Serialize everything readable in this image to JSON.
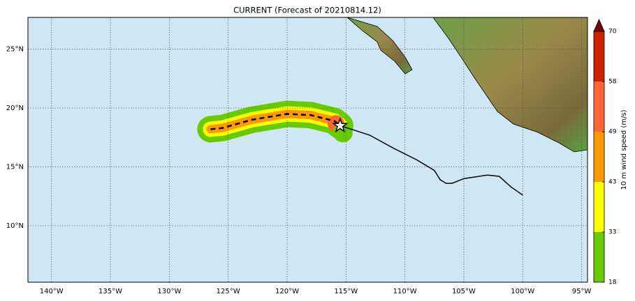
{
  "map": {
    "title": "CURRENT (Forecast of 20210814.12)",
    "lonlim": [
      -142,
      -94.5
    ],
    "latlim": [
      5.2,
      27.7
    ],
    "lonticks": [
      {
        "value": -140,
        "label": "140°W"
      },
      {
        "value": -135,
        "label": "135°W"
      },
      {
        "value": -130,
        "label": "130°W"
      },
      {
        "value": -125,
        "label": "125°W"
      },
      {
        "value": -120,
        "label": "120°W"
      },
      {
        "value": -115,
        "label": "115°W"
      },
      {
        "value": -110,
        "label": "110°W"
      },
      {
        "value": -105,
        "label": "105°W"
      },
      {
        "value": -100,
        "label": "100°W"
      },
      {
        "value": -95,
        "label": "95°W"
      }
    ],
    "latticks": [
      {
        "value": 10,
        "label": "10°N"
      },
      {
        "value": 15,
        "label": "15°N"
      },
      {
        "value": 20,
        "label": "20°N"
      },
      {
        "value": 25,
        "label": "25°N"
      }
    ],
    "past_track": {
      "lon": [
        -115.5,
        -113,
        -111,
        -109,
        -107.5,
        -107,
        -106.5,
        -106,
        -105,
        -103,
        -102,
        -101,
        -100
      ],
      "lat": [
        18.5,
        17.7,
        16.6,
        15.6,
        14.7,
        13.9,
        13.6,
        13.6,
        14.0,
        14.3,
        14.2,
        13.3,
        12.6
      ]
    },
    "forecast_track": {
      "lon": [
        -126.5,
        -125.5,
        -123,
        -120,
        -118,
        -116,
        -115.5
      ],
      "lat": [
        18.2,
        18.3,
        19.0,
        19.5,
        19.4,
        18.9,
        18.5
      ]
    },
    "storm_position": {
      "lon": -115.5,
      "lat": 18.5
    },
    "colorbar": {
      "label": "10 m wind speed (m/s)",
      "ticks": [
        18,
        33,
        43,
        49,
        58,
        70
      ],
      "colors": [
        "#66cc00",
        "#ffff00",
        "#ff9900",
        "#ff6633",
        "#cc2200"
      ],
      "extend_color": "#7a0000"
    }
  }
}
